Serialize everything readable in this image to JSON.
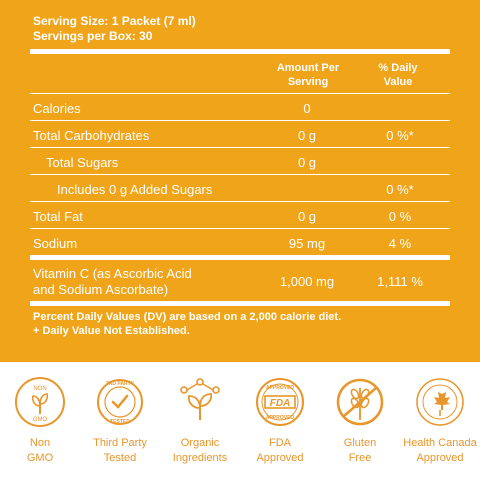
{
  "serving": {
    "size": "Serving Size: 1 Packet (7 ml)",
    "per_box": "Servings per Box: 30"
  },
  "header": {
    "amount_line1": "Amount Per",
    "amount_line2": "Serving",
    "dv_line1": "% Daily",
    "dv_line2": "Value"
  },
  "rows": [
    {
      "label": "Calories",
      "amount": "0",
      "dv": ""
    },
    {
      "label": "Total Carbohydrates",
      "amount": "0 g",
      "dv": "0 %*"
    },
    {
      "label": "Total Sugars",
      "amount": "0 g",
      "dv": ""
    },
    {
      "label": "Includes 0 g Added Sugars",
      "amount": "",
      "dv": "0 %*"
    },
    {
      "label": "Total Fat",
      "amount": "0 g",
      "dv": "0 %"
    },
    {
      "label": "Sodium",
      "amount": "95 mg",
      "dv": "4 %"
    }
  ],
  "vitamin": {
    "label_line1": "Vitamin C (as Ascorbic Acid",
    "label_line2": "and Sodium Ascorbate)",
    "amount": "1,000 mg",
    "dv": "1,111 %"
  },
  "footnote": {
    "line1": "Percent Daily Values (DV) are based on a 2,000 calorie diet.",
    "line2": "+ Daily Value Not Established."
  },
  "badges": [
    {
      "icon": "non-gmo-icon",
      "line1": "Non",
      "line2": "GMO",
      "inner_top": "NON",
      "inner_bottom": "GMO"
    },
    {
      "icon": "third-party-tested-icon",
      "line1": "Third Party",
      "line2": "Tested",
      "inner_top": "3RD PARTY",
      "inner_bottom": "TESTED"
    },
    {
      "icon": "organic-ingredients-icon",
      "line1": "Organic",
      "line2": "Ingredients"
    },
    {
      "icon": "fda-approved-icon",
      "line1": "FDA",
      "line2": "Approved",
      "inner_top": "APPROVED",
      "inner_bottom": "APPROVED",
      "inner_mid": "FDA"
    },
    {
      "icon": "gluten-free-icon",
      "line1": "Gluten",
      "line2": "Free"
    },
    {
      "icon": "health-canada-icon",
      "line1": "Health Canada",
      "line2": "Approved"
    }
  ],
  "colors": {
    "panel": "#f0a41a",
    "badge": "#e8962a",
    "text_on_panel": "#ffffff"
  }
}
